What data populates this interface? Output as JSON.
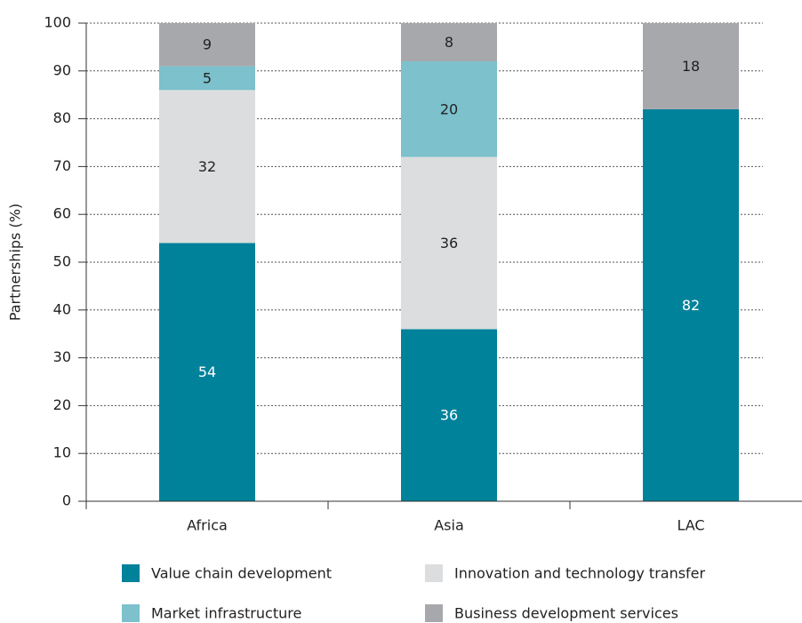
{
  "chart_data": {
    "type": "stacked_bar",
    "y_label": "Partnerships (%)",
    "categories": [
      "Africa",
      "Asia",
      "LAC"
    ],
    "series": [
      {
        "name": "Value chain development",
        "color": "#00829b",
        "values": [
          54,
          36,
          82
        ]
      },
      {
        "name": "Innovation and technology transfer",
        "color": "#dcdddf",
        "values": [
          32,
          36,
          null
        ]
      },
      {
        "name": "Market infrastructure",
        "color": "#7cc1cc",
        "values": [
          5,
          20,
          null
        ]
      },
      {
        "name": "Business development services",
        "color": "#a7a8ac",
        "values": [
          9,
          8,
          18
        ]
      }
    ],
    "ylim": [
      0,
      100
    ],
    "yticks": [
      0,
      10,
      20,
      30,
      40,
      50,
      60,
      70,
      80,
      90,
      100
    ],
    "grid": true
  }
}
